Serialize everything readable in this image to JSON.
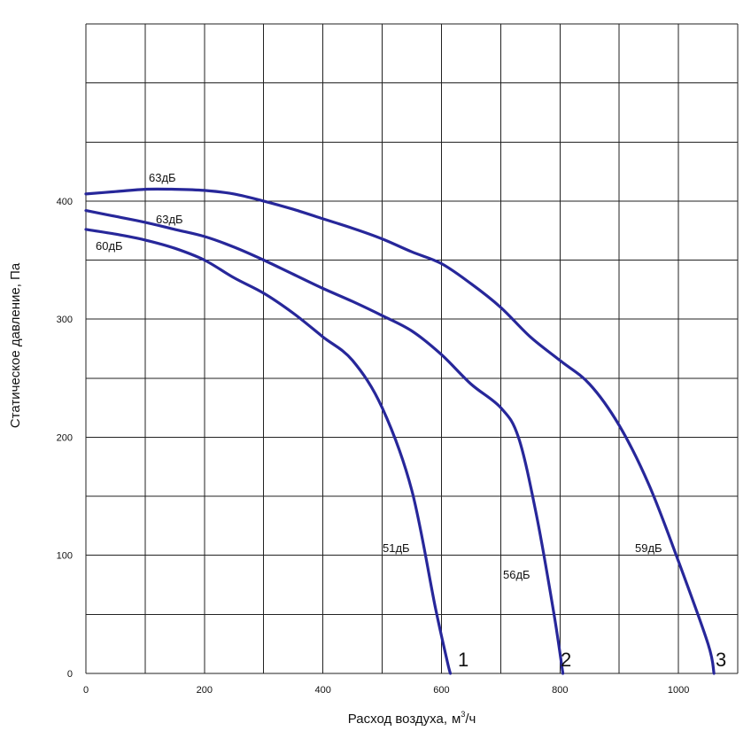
{
  "chart_data": {
    "type": "line",
    "title": "",
    "xlabel": "Расход воздуха,",
    "xlabel_unit": {
      "base": "м",
      "sup": "3",
      "rest": "/ч"
    },
    "ylabel": "Статическое давление, Па",
    "xlim": [
      0,
      1100
    ],
    "ylim": [
      0,
      550
    ],
    "x_grid_step": 100,
    "y_grid_step": 50,
    "grid": true,
    "x_ticks": [
      0,
      200,
      400,
      600,
      800,
      1000
    ],
    "x_tick_labels": [
      "0",
      "200",
      "400",
      "600",
      "800",
      "1000"
    ],
    "y_ticks": [
      0,
      100,
      200,
      300,
      400
    ],
    "y_tick_labels": [
      "0",
      "100",
      "200",
      "300",
      "400"
    ],
    "line_color": "#27279a",
    "grid_color": "#222222",
    "series": [
      {
        "name": "1",
        "top_label": "60дБ",
        "bottom_label": "51дБ",
        "x": [
          0,
          50,
          100,
          150,
          200,
          250,
          300,
          350,
          400,
          450,
          500,
          550,
          590,
          610,
          615
        ],
        "y": [
          376,
          372,
          367,
          360,
          350,
          335,
          322,
          305,
          285,
          265,
          225,
          155,
          55,
          10,
          0
        ]
      },
      {
        "name": "2",
        "top_label": "63дБ",
        "bottom_label": "56дБ",
        "x": [
          0,
          50,
          100,
          150,
          200,
          250,
          300,
          350,
          400,
          450,
          500,
          550,
          600,
          650,
          700,
          730,
          760,
          790,
          805
        ],
        "y": [
          392,
          387,
          382,
          376,
          370,
          361,
          350,
          338,
          326,
          315,
          303,
          290,
          270,
          245,
          225,
          200,
          135,
          50,
          0
        ]
      },
      {
        "name": "3",
        "top_label": "63дБ",
        "bottom_label": "59дБ",
        "x": [
          0,
          50,
          100,
          150,
          200,
          250,
          300,
          350,
          400,
          450,
          500,
          550,
          600,
          650,
          700,
          750,
          800,
          850,
          900,
          950,
          1000,
          1050,
          1060
        ],
        "y": [
          406,
          408,
          410,
          410,
          409,
          406,
          400,
          393,
          385,
          377,
          368,
          357,
          347,
          330,
          310,
          285,
          265,
          245,
          210,
          160,
          95,
          25,
          0
        ]
      }
    ]
  }
}
